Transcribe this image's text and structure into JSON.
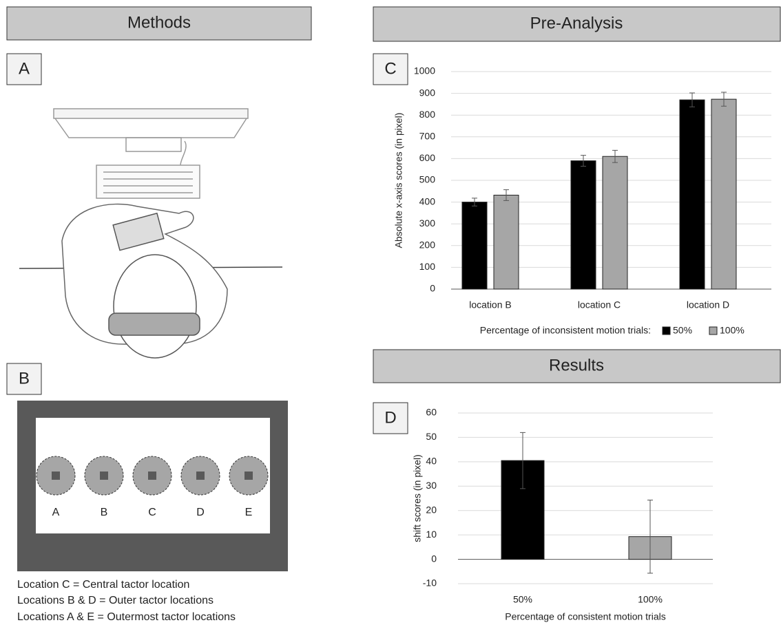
{
  "headers": {
    "methods": "Methods",
    "pre_analysis": "Pre-Analysis",
    "results": "Results"
  },
  "panels": {
    "a": "A",
    "b": "B",
    "c": "C",
    "d": "D"
  },
  "tactors": [
    "A",
    "B",
    "C",
    "D",
    "E"
  ],
  "notes": [
    "Location C = Central tactor location",
    "Locations B & D = Outer tactor locations",
    "Locations A & E = Outermost tactor locations"
  ],
  "chart_data": [
    {
      "type": "bar",
      "categories": [
        "location B",
        "location C",
        "location D"
      ],
      "y_label": "Absolute x-axis scores (in pixel)",
      "legend_title": "Percentage of inconsistent motion trials:",
      "series": [
        {
          "name": "50%",
          "color": "#000000",
          "values": [
            400,
            590,
            870
          ],
          "errors": [
            18,
            25,
            32
          ]
        },
        {
          "name": "100%",
          "color": "#a6a6a6",
          "values": [
            432,
            610,
            873
          ],
          "errors": [
            25,
            28,
            32
          ]
        }
      ],
      "ylim": [
        0,
        1000
      ],
      "yticks": [
        0,
        100,
        200,
        300,
        400,
        500,
        600,
        700,
        800,
        900,
        1000
      ],
      "grid": true
    },
    {
      "type": "bar",
      "categories": [
        "50%",
        "100%"
      ],
      "x_label": "Percentage of consistent motion trials",
      "y_label": "shift scores (in pixel)",
      "values": [
        40.5,
        9.3
      ],
      "errors": [
        11.5,
        15
      ],
      "colors": [
        "#000000",
        "#a6a6a6"
      ],
      "ylim": [
        -10,
        60
      ],
      "yticks": [
        -10,
        0,
        10,
        20,
        30,
        40,
        50,
        60
      ],
      "grid": true
    }
  ]
}
